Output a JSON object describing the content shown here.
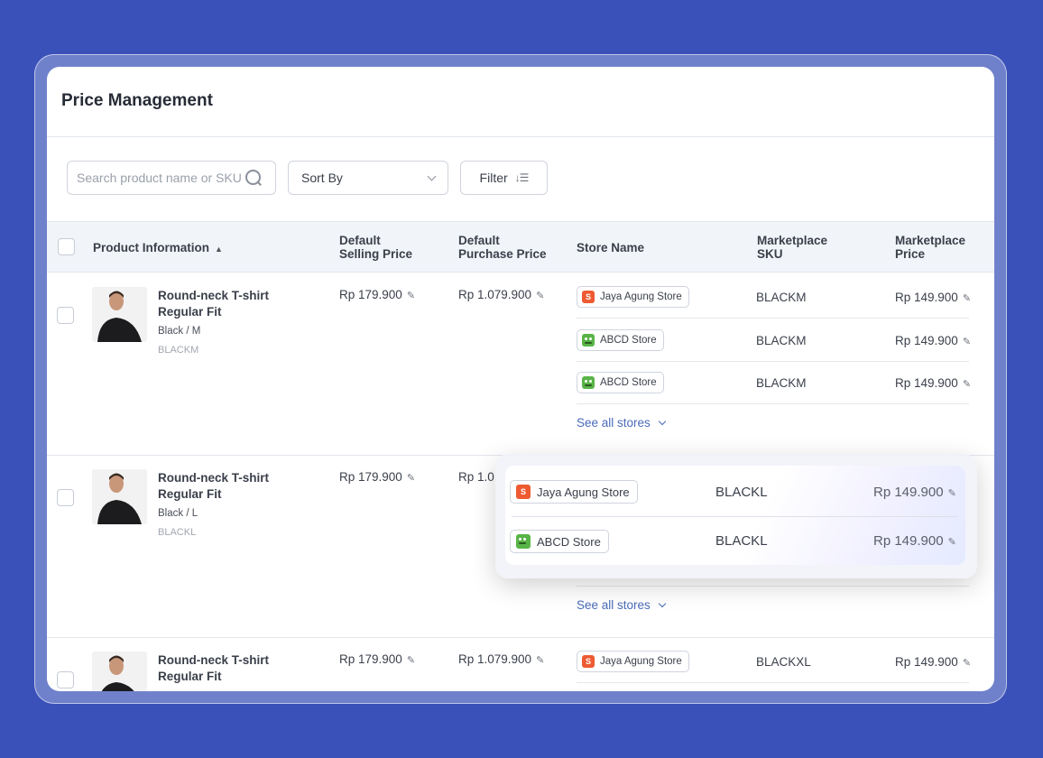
{
  "page": {
    "title": "Price Management"
  },
  "toolbar": {
    "search_placeholder": "Search product name or SKU",
    "sort_label": "Sort By",
    "filter_label": "Filter"
  },
  "table": {
    "headers": {
      "product": "Product Information",
      "selling_1": "Default",
      "selling_2": "Selling Price",
      "purchase_1": "Default",
      "purchase_2": "Purchase Price",
      "store": "Store Name",
      "msku_1": "Marketplace",
      "msku_2": "SKU",
      "mprice_1": "Marketplace",
      "mprice_2": "Price"
    },
    "see_all": "See all stores",
    "rows": [
      {
        "name": "Round-neck T-shirt Regular Fit",
        "variant": "Black / M",
        "sku": "BLACKM",
        "selling": "Rp 179.900",
        "purchase": "Rp 1.079.900",
        "stores": [
          {
            "name": "Jaya Agung Store",
            "marketplace": "shopee",
            "sku": "BLACKM",
            "price": "Rp 149.900"
          },
          {
            "name": "ABCD Store",
            "marketplace": "tokopedia",
            "sku": "BLACKM",
            "price": "Rp 149.900"
          },
          {
            "name": "ABCD Store",
            "marketplace": "tokopedia",
            "sku": "BLACKM",
            "price": "Rp 149.900"
          }
        ]
      },
      {
        "name": "Round-neck T-shirt Regular Fit",
        "variant": "Black / L",
        "sku": "BLACKL",
        "selling": "Rp 179.900",
        "purchase": "Rp 1.0",
        "stores": [
          {
            "name": "Jaya Agung Store",
            "marketplace": "shopee",
            "sku": "BLACKL",
            "price": "Rp 149.900"
          },
          {
            "name": "ABCD Store",
            "marketplace": "tokopedia",
            "sku": "BLACKL",
            "price": "Rp 149.900"
          }
        ]
      },
      {
        "name": "Round-neck T-shirt Regular Fit",
        "selling": "Rp 179.900",
        "purchase": "Rp 1.079.900",
        "stores": [
          {
            "name": "Jaya Agung Store",
            "marketplace": "shopee",
            "sku": "BLACKXL",
            "price": "Rp 149.900"
          }
        ]
      }
    ]
  },
  "colors": {
    "background": "#3a51b9",
    "link": "#4a6bb8",
    "shopee": "#ee5a32",
    "tokopedia": "#59b448"
  },
  "icons": {
    "search": "search-icon",
    "chevron": "chevron-down-icon",
    "filter": "filter-icon",
    "edit": "pencil-icon",
    "sort": "sort-icon",
    "shopee": "shopee-bag-icon",
    "tokopedia": "tokopedia-owl-icon"
  }
}
